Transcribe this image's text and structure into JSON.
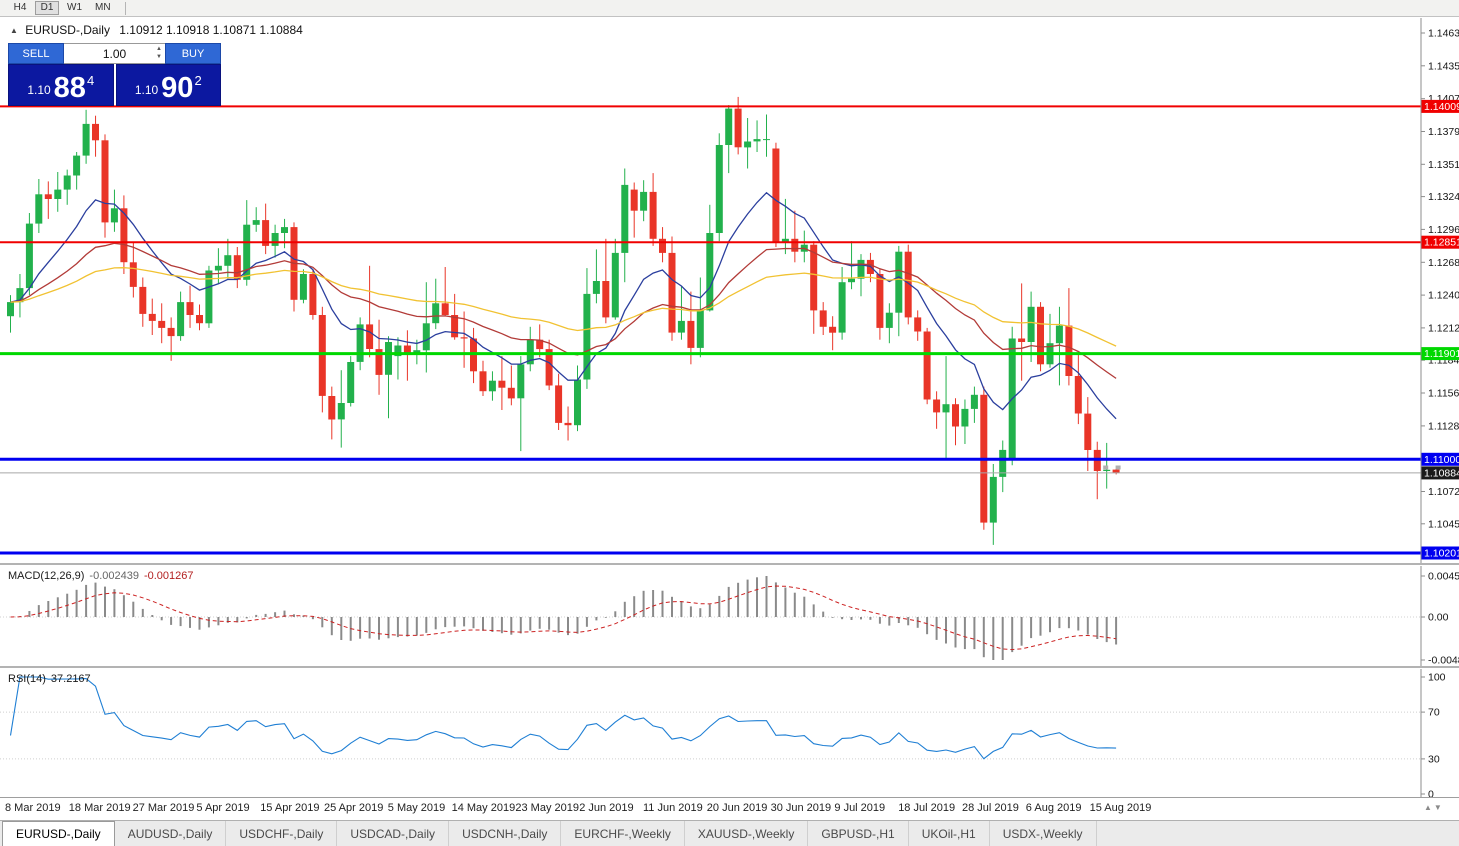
{
  "toolbar": {
    "periods": [
      "H4",
      "D1",
      "W1",
      "MN"
    ],
    "active": "D1"
  },
  "header": {
    "symbol": "EURUSD-,Daily",
    "ohlc": "1.10912 1.10918 1.10871 1.10884"
  },
  "trade_panel": {
    "sell_label": "SELL",
    "buy_label": "BUY",
    "volume": "1.00",
    "sell_small": "1.10",
    "sell_big": "88",
    "sell_sup": "4",
    "buy_small": "1.10",
    "buy_big": "90",
    "buy_sup": "2"
  },
  "price_axis": {
    "ticks": [
      "1.14635",
      "1.14355",
      "1.14075",
      "1.13795",
      "1.13515",
      "1.13240",
      "1.12960",
      "1.12680",
      "1.12400",
      "1.12120",
      "1.11845",
      "1.11565",
      "1.11285",
      "1.10725",
      "1.10450"
    ],
    "current_label": "1.10884"
  },
  "macd_panel": {
    "label": "MACD(12,26,9)",
    "value_main": "-0.002439",
    "value_signal": "-0.001267",
    "axis": [
      "0.004517",
      "0.00",
      "-0.004806"
    ]
  },
  "rsi_panel": {
    "label": "RSI(14)",
    "value": "37.2167",
    "axis": [
      "100",
      "70",
      "30",
      "0"
    ]
  },
  "date_axis": [
    "8 Mar 2019",
    "18 Mar 2019",
    "27 Mar 2019",
    "5 Apr 2019",
    "15 Apr 2019",
    "25 Apr 2019",
    "5 May 2019",
    "14 May 2019",
    "23 May 2019",
    "2 Jun 2019",
    "11 Jun 2019",
    "20 Jun 2019",
    "30 Jun 2019",
    "9 Jul 2019",
    "18 Jul 2019",
    "28 Jul 2019",
    "6 Aug 2019",
    "15 Aug 2019"
  ],
  "tabs": [
    {
      "label": "EURUSD-,Daily",
      "active": true
    },
    {
      "label": "AUDUSD-,Daily",
      "active": false
    },
    {
      "label": "USDCHF-,Daily",
      "active": false
    },
    {
      "label": "USDCAD-,Daily",
      "active": false
    },
    {
      "label": "USDCNH-,Daily",
      "active": false
    },
    {
      "label": "EURCHF-,Weekly",
      "active": false
    },
    {
      "label": "XAUUSD-,Weekly",
      "active": false
    },
    {
      "label": "GBPUSD-,H1",
      "active": false
    },
    {
      "label": "UKOil-,H1",
      "active": false
    },
    {
      "label": "USDX-,Weekly",
      "active": false
    }
  ],
  "chart_data": {
    "type": "candlestick",
    "symbol": "EURUSD",
    "timeframe": "Daily",
    "current_price": 1.10884,
    "ma_periods": [
      12,
      30,
      60
    ],
    "macd_params": [
      12,
      26,
      9
    ],
    "rsi_period": 14,
    "colors": {
      "up": "#22b14c",
      "down": "#e93528",
      "ma_fast": "#2b3f9e",
      "ma_mid": "#b23b38",
      "ma_slow": "#f1c232",
      "macd_hist": "#8a8a8a",
      "macd_signal": "#cc2222",
      "rsi": "#1f7fd4",
      "hline_red": "#f00000",
      "hline_green": "#00d800",
      "hline_blue": "#0000f0"
    },
    "hlines": [
      {
        "label": "1.14009",
        "price": 1.14009,
        "color": "#f00000",
        "width": 2
      },
      {
        "label": "1.12851",
        "price": 1.12851,
        "color": "#f00000",
        "width": 2
      },
      {
        "label": "1.11901",
        "price": 1.11901,
        "color": "#00d800",
        "width": 3
      },
      {
        "label": "1.11000",
        "price": 1.11,
        "color": "#0000f0",
        "width": 3
      },
      {
        "label": "1.10201",
        "price": 1.10201,
        "color": "#0000f0",
        "width": 3
      }
    ],
    "candles": [
      [
        1.1222,
        1.124,
        1.1208,
        1.1234
      ],
      [
        1.1234,
        1.1258,
        1.1221,
        1.1246
      ],
      [
        1.1246,
        1.131,
        1.124,
        1.1301
      ],
      [
        1.1301,
        1.1339,
        1.1293,
        1.1326
      ],
      [
        1.1326,
        1.1337,
        1.1305,
        1.1322
      ],
      [
        1.1322,
        1.1345,
        1.1311,
        1.133
      ],
      [
        1.133,
        1.1347,
        1.1317,
        1.1342
      ],
      [
        1.1342,
        1.1362,
        1.133,
        1.1359
      ],
      [
        1.1359,
        1.1398,
        1.1352,
        1.1386
      ],
      [
        1.1386,
        1.1393,
        1.1358,
        1.1372
      ],
      [
        1.1372,
        1.1377,
        1.1289,
        1.1302
      ],
      [
        1.1302,
        1.133,
        1.1294,
        1.1314
      ],
      [
        1.1314,
        1.1325,
        1.1258,
        1.1268
      ],
      [
        1.1268,
        1.1285,
        1.1238,
        1.1247
      ],
      [
        1.1247,
        1.1255,
        1.1213,
        1.1224
      ],
      [
        1.1224,
        1.1237,
        1.1206,
        1.1218
      ],
      [
        1.1218,
        1.1233,
        1.1199,
        1.1212
      ],
      [
        1.1212,
        1.1221,
        1.1184,
        1.1205
      ],
      [
        1.1205,
        1.1243,
        1.1201,
        1.1234
      ],
      [
        1.1234,
        1.1248,
        1.1212,
        1.1223
      ],
      [
        1.1223,
        1.1232,
        1.121,
        1.1216
      ],
      [
        1.1216,
        1.1265,
        1.1212,
        1.1261
      ],
      [
        1.1261,
        1.128,
        1.125,
        1.1265
      ],
      [
        1.1265,
        1.1288,
        1.1254,
        1.1274
      ],
      [
        1.1274,
        1.1281,
        1.1246,
        1.1253
      ],
      [
        1.1253,
        1.1321,
        1.1248,
        1.13
      ],
      [
        1.13,
        1.1315,
        1.1294,
        1.1304
      ],
      [
        1.1304,
        1.1318,
        1.1275,
        1.1282
      ],
      [
        1.1282,
        1.13,
        1.1272,
        1.1293
      ],
      [
        1.1293,
        1.1305,
        1.128,
        1.1298
      ],
      [
        1.1298,
        1.1302,
        1.1226,
        1.1236
      ],
      [
        1.1236,
        1.1262,
        1.1233,
        1.1258
      ],
      [
        1.1258,
        1.1262,
        1.1219,
        1.1223
      ],
      [
        1.1223,
        1.123,
        1.114,
        1.1154
      ],
      [
        1.1154,
        1.1162,
        1.1117,
        1.1134
      ],
      [
        1.1134,
        1.1176,
        1.111,
        1.1148
      ],
      [
        1.1148,
        1.1188,
        1.1145,
        1.1183
      ],
      [
        1.1183,
        1.1221,
        1.1176,
        1.1215
      ],
      [
        1.1215,
        1.1265,
        1.1187,
        1.1194
      ],
      [
        1.1194,
        1.1219,
        1.1155,
        1.1172
      ],
      [
        1.1172,
        1.1205,
        1.1135,
        1.12
      ],
      [
        1.1188,
        1.1204,
        1.1168,
        1.1197
      ],
      [
        1.1197,
        1.121,
        1.1167,
        1.119
      ],
      [
        1.119,
        1.1202,
        1.1181,
        1.1193
      ],
      [
        1.1193,
        1.1251,
        1.1174,
        1.1216
      ],
      [
        1.1216,
        1.1254,
        1.1211,
        1.1233
      ],
      [
        1.1233,
        1.1264,
        1.1222,
        1.1223
      ],
      [
        1.1223,
        1.1241,
        1.1202,
        1.1204
      ],
      [
        1.1204,
        1.1226,
        1.1178,
        1.1203
      ],
      [
        1.1203,
        1.1212,
        1.1165,
        1.1175
      ],
      [
        1.1175,
        1.1184,
        1.1154,
        1.1158
      ],
      [
        1.1158,
        1.1175,
        1.115,
        1.1167
      ],
      [
        1.1167,
        1.1188,
        1.1142,
        1.1161
      ],
      [
        1.1161,
        1.118,
        1.1146,
        1.1152
      ],
      [
        1.1152,
        1.1188,
        1.1107,
        1.1181
      ],
      [
        1.1181,
        1.1213,
        1.1175,
        1.1202
      ],
      [
        1.1202,
        1.1215,
        1.1187,
        1.1194
      ],
      [
        1.1194,
        1.1202,
        1.1159,
        1.1163
      ],
      [
        1.1163,
        1.1173,
        1.1125,
        1.1131
      ],
      [
        1.1131,
        1.1145,
        1.1116,
        1.1129
      ],
      [
        1.1129,
        1.118,
        1.1124,
        1.1168
      ],
      [
        1.1168,
        1.1263,
        1.116,
        1.1241
      ],
      [
        1.1241,
        1.1279,
        1.1233,
        1.1252
      ],
      [
        1.1252,
        1.1288,
        1.1216,
        1.1221
      ],
      [
        1.1221,
        1.1288,
        1.1219,
        1.1276
      ],
      [
        1.1276,
        1.1348,
        1.1251,
        1.1334
      ],
      [
        1.133,
        1.1336,
        1.1289,
        1.1312
      ],
      [
        1.1312,
        1.1338,
        1.1303,
        1.1328
      ],
      [
        1.1328,
        1.1344,
        1.1282,
        1.1288
      ],
      [
        1.1288,
        1.1298,
        1.1268,
        1.1276
      ],
      [
        1.1276,
        1.129,
        1.1201,
        1.1208
      ],
      [
        1.1208,
        1.1248,
        1.1202,
        1.1218
      ],
      [
        1.1218,
        1.1243,
        1.1181,
        1.1195
      ],
      [
        1.1195,
        1.1255,
        1.1187,
        1.1227
      ],
      [
        1.1227,
        1.1317,
        1.1226,
        1.1293
      ],
      [
        1.1293,
        1.1378,
        1.1286,
        1.1368
      ],
      [
        1.1368,
        1.1402,
        1.1344,
        1.1399
      ],
      [
        1.1399,
        1.1409,
        1.136,
        1.1366
      ],
      [
        1.1366,
        1.1391,
        1.1348,
        1.1371
      ],
      [
        1.1371,
        1.1389,
        1.1362,
        1.1373
      ],
      [
        1.1373,
        1.1394,
        1.1358,
        1.1373
      ],
      [
        1.1365,
        1.137,
        1.1281,
        1.1285
      ],
      [
        1.1285,
        1.1322,
        1.1275,
        1.1288
      ],
      [
        1.1288,
        1.1312,
        1.1268,
        1.1277
      ],
      [
        1.1277,
        1.1295,
        1.1268,
        1.1283
      ],
      [
        1.1283,
        1.1286,
        1.1207,
        1.1227
      ],
      [
        1.1227,
        1.1234,
        1.1206,
        1.1213
      ],
      [
        1.1213,
        1.1222,
        1.1193,
        1.1208
      ],
      [
        1.1208,
        1.1264,
        1.1202,
        1.1251
      ],
      [
        1.1251,
        1.1286,
        1.1245,
        1.1254
      ],
      [
        1.1254,
        1.1275,
        1.1239,
        1.127
      ],
      [
        1.127,
        1.1276,
        1.1251,
        1.1258
      ],
      [
        1.1258,
        1.1262,
        1.1202,
        1.1212
      ],
      [
        1.1212,
        1.1233,
        1.1199,
        1.1225
      ],
      [
        1.1225,
        1.1282,
        1.1205,
        1.1277
      ],
      [
        1.1277,
        1.1283,
        1.1215,
        1.1221
      ],
      [
        1.1221,
        1.1227,
        1.1201,
        1.1209
      ],
      [
        1.1209,
        1.1212,
        1.1147,
        1.1151
      ],
      [
        1.1151,
        1.1158,
        1.1126,
        1.114
      ],
      [
        1.114,
        1.1188,
        1.1101,
        1.1147
      ],
      [
        1.1147,
        1.1152,
        1.1112,
        1.1128
      ],
      [
        1.1128,
        1.1151,
        1.1113,
        1.1143
      ],
      [
        1.1143,
        1.1162,
        1.1131,
        1.1155
      ],
      [
        1.1155,
        1.1162,
        1.104,
        1.1046
      ],
      [
        1.1046,
        1.1096,
        1.1027,
        1.1085
      ],
      [
        1.1085,
        1.1116,
        1.1072,
        1.1108
      ],
      [
        1.11,
        1.1213,
        1.1095,
        1.1203
      ],
      [
        1.1203,
        1.125,
        1.1167,
        1.12
      ],
      [
        1.12,
        1.1243,
        1.1183,
        1.123
      ],
      [
        1.123,
        1.1234,
        1.1175,
        1.1181
      ],
      [
        1.1181,
        1.1224,
        1.1178,
        1.1199
      ],
      [
        1.1199,
        1.123,
        1.1163,
        1.1214
      ],
      [
        1.1214,
        1.1246,
        1.1163,
        1.1171
      ],
      [
        1.1171,
        1.1192,
        1.113,
        1.1139
      ],
      [
        1.1139,
        1.1153,
        1.109,
        1.1108
      ],
      [
        1.1108,
        1.1115,
        1.1066,
        1.109
      ],
      [
        1.109,
        1.1114,
        1.1075,
        1.1091
      ],
      [
        1.10912,
        1.10918,
        1.10871,
        1.10884
      ]
    ]
  }
}
